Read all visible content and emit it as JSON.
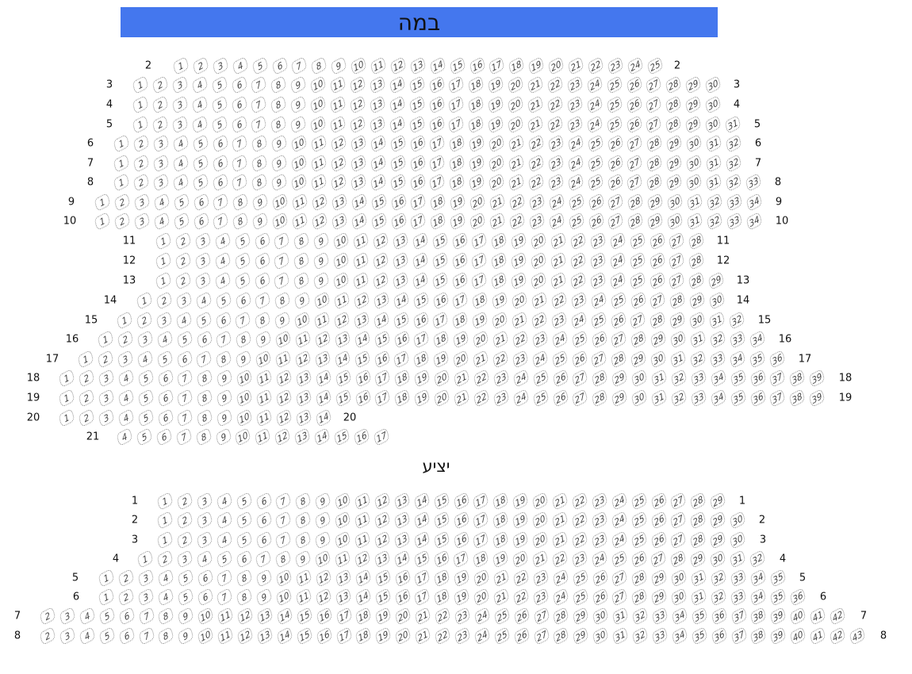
{
  "stage": {
    "label": "במה",
    "color": "#4477ee"
  },
  "balcony": {
    "label": "יציע"
  },
  "hall_rows": [
    {
      "label": "2",
      "from": 1,
      "to": 25
    },
    {
      "label": "3",
      "from": 1,
      "to": 30
    },
    {
      "label": "4",
      "from": 1,
      "to": 30
    },
    {
      "label": "5",
      "from": 1,
      "to": 31
    },
    {
      "label": "6",
      "from": 1,
      "to": 32
    },
    {
      "label": "7",
      "from": 1,
      "to": 32
    },
    {
      "label": "8",
      "from": 1,
      "to": 33
    },
    {
      "label": "9",
      "from": 1,
      "to": 34
    },
    {
      "label": "10",
      "from": 1,
      "to": 34
    },
    {
      "label": "11",
      "from": 1,
      "to": 28
    },
    {
      "label": "12",
      "from": 1,
      "to": 28
    },
    {
      "label": "13",
      "from": 1,
      "to": 29
    },
    {
      "label": "14",
      "from": 1,
      "to": 30
    },
    {
      "label": "15",
      "from": 1,
      "to": 32
    },
    {
      "label": "16",
      "from": 1,
      "to": 34
    },
    {
      "label": "17",
      "from": 1,
      "to": 36
    },
    {
      "label": "18",
      "from": 1,
      "to": 39
    },
    {
      "label": "19",
      "from": 1,
      "to": 39
    },
    {
      "label": "20",
      "from": 1,
      "to": 14
    },
    {
      "label": "21",
      "from": 4,
      "to": 17,
      "right_label": false
    }
  ],
  "balcony_rows": [
    {
      "label": "1",
      "from": 1,
      "to": 29
    },
    {
      "label": "2",
      "from": 1,
      "to": 30
    },
    {
      "label": "3",
      "from": 1,
      "to": 30
    },
    {
      "label": "4",
      "from": 1,
      "to": 32
    },
    {
      "label": "5",
      "from": 1,
      "to": 35
    },
    {
      "label": "6",
      "from": 1,
      "to": 36
    },
    {
      "label": "7",
      "from": 2,
      "to": 42
    },
    {
      "label": "8",
      "from": 2,
      "to": 43
    }
  ]
}
